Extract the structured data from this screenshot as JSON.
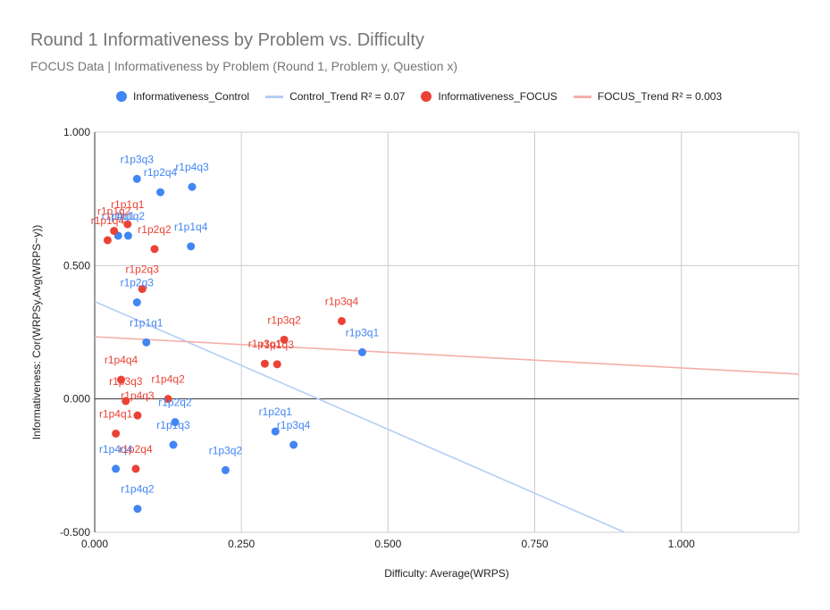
{
  "chart_data": {
    "type": "scatter",
    "title": "Round 1 Informativeness by Problem vs. Difficulty",
    "subtitle": "FOCUS Data | Informativeness by Problem (Round 1, Problem y, Question x)",
    "xlabel": "Difficulty: Average(WRPS)",
    "ylabel": "Informativeness: Cor(WRPSy,Avg(WRPS~y))",
    "xlim": [
      0,
      1.2
    ],
    "ylim": [
      -0.5,
      1.0
    ],
    "x_ticks": [
      0,
      0.25,
      0.5,
      0.75,
      1.0
    ],
    "x_tick_labels": [
      "0.000",
      "0.250",
      "0.500",
      "0.750",
      "1.000"
    ],
    "y_ticks": [
      -0.5,
      0,
      0.5,
      1.0
    ],
    "y_tick_labels": [
      "-0.500",
      "0.000",
      "0.500",
      "1.000"
    ],
    "grid": true,
    "legend_position": "top",
    "colors": {
      "control": "#4285f4",
      "focus": "#ea4335",
      "control_trend": "#b4cdf5",
      "focus_trend": "#f4b0aa"
    },
    "legend": [
      {
        "label": "Informativeness_Control",
        "kind": "dot",
        "series": "control"
      },
      {
        "label": "Control_Trend R² = 0.07",
        "kind": "line",
        "series": "control_trend"
      },
      {
        "label": "Informativeness_FOCUS",
        "kind": "dot",
        "series": "focus"
      },
      {
        "label": "FOCUS_Trend R² = 0.003",
        "kind": "line",
        "series": "focus_trend"
      }
    ],
    "series": [
      {
        "name": "Informativeness_Control",
        "key": "control",
        "points": [
          {
            "label": "r1p3q3",
            "x": 0.072,
            "y": 0.825
          },
          {
            "label": "r1p2q4",
            "x": 0.112,
            "y": 0.775
          },
          {
            "label": "r1p4q3",
            "x": 0.166,
            "y": 0.795
          },
          {
            "label": "r1p4q1",
            "x": 0.04,
            "y": 0.612
          },
          {
            "label": "r1p1q2",
            "x": 0.057,
            "y": 0.612
          },
          {
            "label": "r1p1q4",
            "x": 0.164,
            "y": 0.572
          },
          {
            "label": "r1p2q3",
            "x": 0.072,
            "y": 0.362
          },
          {
            "label": "r1p1q1",
            "x": 0.088,
            "y": 0.212
          },
          {
            "label": "r1p3q1",
            "x": 0.456,
            "y": 0.175
          },
          {
            "label": "r1p2q2",
            "x": 0.137,
            "y": -0.087
          },
          {
            "label": "r1p2q1",
            "x": 0.308,
            "y": -0.122
          },
          {
            "label": "r1p1q3",
            "x": 0.134,
            "y": -0.172
          },
          {
            "label": "r1p3q4",
            "x": 0.339,
            "y": -0.172
          },
          {
            "label": "r1p4q4",
            "x": 0.036,
            "y": -0.262
          },
          {
            "label": "r1p3q2",
            "x": 0.223,
            "y": -0.267
          },
          {
            "label": "r1p4q2",
            "x": 0.073,
            "y": -0.412
          }
        ]
      },
      {
        "name": "Informativeness_FOCUS",
        "key": "focus",
        "points": [
          {
            "label": "r1p1q1",
            "x": 0.056,
            "y": 0.655
          },
          {
            "label": "r1p1q2",
            "x": 0.033,
            "y": 0.63
          },
          {
            "label": "r1p1q4",
            "x": 0.022,
            "y": 0.595
          },
          {
            "label": "r1p2q2",
            "x": 0.102,
            "y": 0.562
          },
          {
            "label": "r1p2q3",
            "x": 0.081,
            "y": 0.412
          },
          {
            "label": "r1p3q4",
            "x": 0.421,
            "y": 0.292
          },
          {
            "label": "r1p3q2",
            "x": 0.323,
            "y": 0.222
          },
          {
            "label": "r1p3q1",
            "x": 0.29,
            "y": 0.132
          },
          {
            "label": "r1p1q3",
            "x": 0.311,
            "y": 0.13
          },
          {
            "label": "r1p4q4",
            "x": 0.045,
            "y": 0.072
          },
          {
            "label": "r1p3q3",
            "x": 0.053,
            "y": -0.008
          },
          {
            "label": "r1p4q2",
            "x": 0.125,
            "y": 0.0
          },
          {
            "label": "r1p4q3",
            "x": 0.073,
            "y": -0.062
          },
          {
            "label": "r1p4q1",
            "x": 0.036,
            "y": -0.13
          },
          {
            "label": "r1p2q4",
            "x": 0.07,
            "y": -0.262
          }
        ]
      }
    ],
    "trendlines": [
      {
        "name": "Control_Trend",
        "key": "control_trend",
        "r2": "0.07",
        "x0": 0,
        "y0": 0.365,
        "x1": 0.903,
        "y1": -0.5
      },
      {
        "name": "FOCUS_Trend",
        "key": "focus_trend",
        "r2": "0.003",
        "x0": 0,
        "y0": 0.233,
        "x1": 1.2,
        "y1": 0.093
      }
    ]
  }
}
